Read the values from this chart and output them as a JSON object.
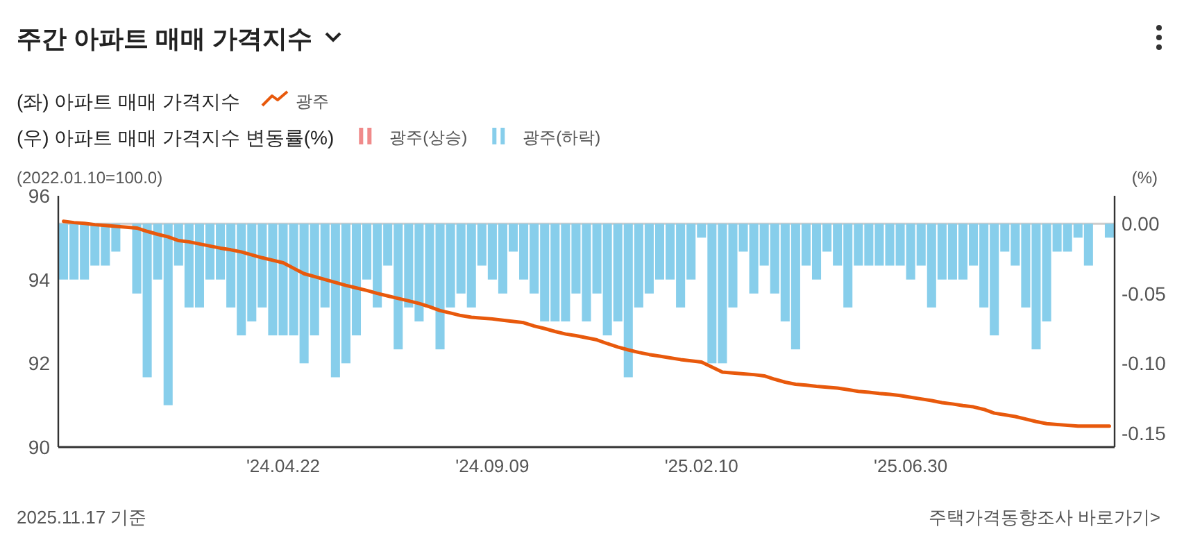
{
  "chart_data": {
    "type": "bar",
    "title": "주간 아파트 매매 가격지수",
    "ylabel": "(2022.01.10=100.0)",
    "y2label": "(%)",
    "legend_title": [
      "(좌) 아파트 매매 가격지수",
      "(우) 아파트 매매 가격지수 변동률(%)"
    ],
    "legend": "top left",
    "categories": [
      null,
      null,
      null,
      null,
      null,
      null,
      null,
      null,
      null,
      null,
      null,
      null,
      null,
      null,
      null,
      null,
      null,
      null,
      null,
      null,
      null,
      "'24.04.22",
      null,
      null,
      null,
      null,
      null,
      null,
      null,
      null,
      null,
      null,
      null,
      null,
      null,
      null,
      null,
      null,
      null,
      null,
      null,
      "'24.09.09",
      null,
      null,
      null,
      null,
      null,
      null,
      null,
      null,
      null,
      null,
      null,
      null,
      null,
      null,
      null,
      null,
      null,
      null,
      null,
      "'25.02.10",
      null,
      null,
      null,
      null,
      null,
      null,
      null,
      null,
      null,
      null,
      null,
      null,
      null,
      null,
      null,
      null,
      null,
      null,
      null,
      "'25.06.30",
      null,
      null,
      null,
      null,
      null,
      null,
      null,
      null,
      null,
      null,
      null,
      null,
      null,
      null,
      null,
      null,
      null,
      null,
      null
    ],
    "series": [
      {
        "name": "광주",
        "type": "line",
        "axis": "y",
        "color": "#e8590c",
        "values": [
          95.39,
          95.36,
          95.34,
          95.31,
          95.29,
          95.27,
          95.25,
          95.23,
          95.15,
          95.08,
          95.02,
          94.93,
          94.9,
          94.85,
          94.8,
          94.75,
          94.71,
          94.66,
          94.59,
          94.52,
          94.46,
          94.4,
          94.27,
          94.14,
          94.07,
          94.0,
          93.93,
          93.86,
          93.8,
          93.74,
          93.67,
          93.61,
          93.55,
          93.49,
          93.43,
          93.35,
          93.26,
          93.2,
          93.14,
          93.1,
          93.08,
          93.06,
          93.03,
          93.0,
          92.97,
          92.89,
          92.83,
          92.76,
          92.7,
          92.66,
          92.61,
          92.56,
          92.47,
          92.39,
          92.32,
          92.26,
          92.21,
          92.17,
          92.13,
          92.09,
          92.06,
          92.03,
          91.91,
          91.79,
          91.77,
          91.75,
          91.73,
          91.7,
          91.62,
          91.55,
          91.5,
          91.48,
          91.45,
          91.43,
          91.41,
          91.37,
          91.33,
          91.31,
          91.28,
          91.26,
          91.23,
          91.19,
          91.15,
          91.11,
          91.06,
          91.03,
          90.99,
          90.96,
          90.9,
          90.81,
          90.77,
          90.73,
          90.67,
          90.61,
          90.56,
          90.54,
          90.52,
          90.5,
          90.5,
          90.5,
          90.5
        ]
      },
      {
        "name": "광주(상승)",
        "axis": "y2",
        "color": "#f08a8a",
        "values": [
          null,
          null,
          null,
          null,
          null,
          null,
          null,
          null,
          null,
          null,
          null,
          null,
          null,
          null,
          null,
          null,
          null,
          null,
          null,
          null,
          null,
          null,
          null,
          null,
          null,
          null,
          null,
          null,
          null,
          null,
          null,
          null,
          null,
          null,
          null,
          null,
          null,
          null,
          null,
          null,
          null,
          null,
          null,
          null,
          null,
          null,
          null,
          null,
          null,
          null,
          null,
          null,
          null,
          null,
          null,
          null,
          null,
          null,
          null,
          null,
          null,
          null,
          null,
          null,
          null,
          null,
          null,
          null,
          null,
          null,
          null,
          null,
          null,
          null,
          null,
          null,
          null,
          null,
          null,
          null,
          null,
          null,
          null,
          null,
          null,
          null,
          null,
          null,
          null,
          null,
          null,
          null,
          null,
          null,
          null,
          null,
          null,
          null,
          null,
          null,
          null
        ]
      },
      {
        "name": "광주(하락)",
        "axis": "y2",
        "color": "#87ceeb",
        "values": [
          -0.04,
          -0.04,
          -0.04,
          -0.03,
          -0.03,
          -0.02,
          0,
          -0.05,
          -0.11,
          -0.04,
          -0.13,
          -0.03,
          -0.06,
          -0.06,
          -0.04,
          -0.04,
          -0.06,
          -0.08,
          -0.07,
          -0.06,
          -0.08,
          -0.08,
          -0.08,
          -0.1,
          -0.08,
          -0.06,
          -0.11,
          -0.1,
          -0.08,
          -0.04,
          -0.06,
          -0.03,
          -0.09,
          -0.06,
          -0.07,
          -0.06,
          -0.09,
          -0.06,
          -0.05,
          -0.06,
          -0.03,
          -0.04,
          -0.05,
          -0.02,
          -0.04,
          -0.05,
          -0.07,
          -0.07,
          -0.07,
          -0.05,
          -0.07,
          -0.05,
          -0.08,
          -0.07,
          -0.11,
          -0.06,
          -0.05,
          -0.04,
          -0.04,
          -0.06,
          -0.04,
          -0.01,
          -0.1,
          -0.1,
          -0.06,
          -0.02,
          -0.05,
          -0.03,
          -0.05,
          -0.07,
          -0.09,
          -0.03,
          -0.04,
          -0.02,
          -0.03,
          -0.06,
          -0.03,
          -0.03,
          -0.03,
          -0.03,
          -0.03,
          -0.04,
          -0.03,
          -0.06,
          -0.04,
          -0.04,
          -0.04,
          -0.03,
          -0.06,
          -0.08,
          -0.02,
          -0.03,
          -0.06,
          -0.09,
          -0.07,
          -0.02,
          -0.02,
          -0.01,
          -0.03,
          0,
          -0.01
        ]
      }
    ],
    "ylim": [
      90,
      96
    ],
    "yticks": [
      90,
      92,
      94,
      96
    ],
    "y2lim": [
      -0.16,
      0.02
    ],
    "y2ticks": [
      {
        "value": -0.15,
        "label": "-0.15"
      },
      {
        "value": -0.1,
        "label": "-0.10"
      },
      {
        "value": -0.05,
        "label": "-0.05"
      },
      {
        "value": 0,
        "label": "0.00"
      }
    ],
    "ref_lines": [
      {
        "axis": "y2",
        "value": 0,
        "color": "#cccccc"
      }
    ],
    "grid": false,
    "annotations": [
      "2025.11.17 기준",
      "주택가격동향조사 바로가기>"
    ]
  }
}
